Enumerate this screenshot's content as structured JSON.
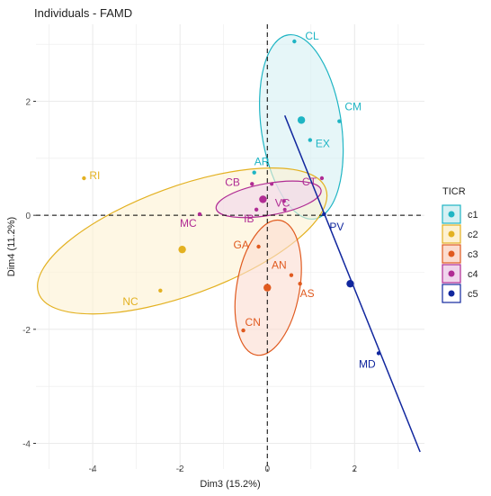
{
  "chart_data": {
    "type": "scatter",
    "title": "Individuals - FAMD",
    "xlabel": "Dim3 (15.2%)",
    "ylabel": "Dim4 (11.2%)",
    "xlim": [
      -5.3,
      3.6
    ],
    "ylim": [
      -4.45,
      3.35
    ],
    "x_ticks": [
      -4,
      -2,
      0,
      2
    ],
    "y_ticks": [
      -4,
      -2,
      0,
      2
    ],
    "grid": true,
    "legend_title": "TICR",
    "legend_position": "right",
    "series": [
      {
        "name": "c1",
        "color": "#1fb5c4",
        "fill": "#d6f0f3",
        "points": [
          {
            "label": "CL",
            "x": 0.62,
            "y": 3.05
          },
          {
            "label": "CM",
            "x": 1.65,
            "y": 1.65
          },
          {
            "label": "EX",
            "x": 0.98,
            "y": 1.32
          },
          {
            "label": "AR",
            "x": -0.3,
            "y": 0.75
          }
        ],
        "centroid": {
          "x": 0.78,
          "y": 1.67
        },
        "ellipse": {
          "cx": 0.78,
          "cy": 1.55,
          "rx": 0.92,
          "ry": 1.63,
          "angle": -8
        }
      },
      {
        "name": "c2",
        "color": "#e3b121",
        "fill": "#fdf1d2",
        "points": [
          {
            "label": "RI",
            "x": -4.2,
            "y": 0.65
          },
          {
            "label": "NC",
            "x": -2.45,
            "y": -1.32
          }
        ],
        "centroid": {
          "x": -1.95,
          "y": -0.6
        },
        "ellipse": {
          "cx": -1.95,
          "cy": -0.45,
          "rx": 3.5,
          "ry": 0.95,
          "angle": -20
        }
      },
      {
        "name": "c3",
        "color": "#e05a1f",
        "fill": "#fbdcd0",
        "points": [
          {
            "label": "GA",
            "x": -0.2,
            "y": -0.55
          },
          {
            "label": "AN",
            "x": 0.55,
            "y": -1.05
          },
          {
            "label": "AS",
            "x": 0.75,
            "y": -1.2
          },
          {
            "label": "CN",
            "x": -0.55,
            "y": -2.02
          }
        ],
        "centroid": {
          "x": 0.0,
          "y": -1.27
        },
        "ellipse": {
          "cx": 0.02,
          "cy": -1.27,
          "rx": 0.72,
          "ry": 1.2,
          "angle": 10
        }
      },
      {
        "name": "c4",
        "color": "#b02c94",
        "fill": "#f0d5ec",
        "points": [
          {
            "label": "CB",
            "x": -0.35,
            "y": 0.55
          },
          {
            "label": "VC",
            "x": 0.38,
            "y": 0.25
          },
          {
            "label": "IB",
            "x": -0.25,
            "y": 0.1
          },
          {
            "label": "MC",
            "x": -1.55,
            "y": 0.02
          },
          {
            "label": "CT",
            "x": 1.25,
            "y": 0.65
          }
        ],
        "centroid": {
          "x": -0.1,
          "y": 0.28
        },
        "ellipse": {
          "cx": 0.03,
          "cy": 0.28,
          "rx": 1.22,
          "ry": 0.28,
          "angle": -10
        }
      },
      {
        "name": "c5",
        "color": "#11279e",
        "fill": "none",
        "points": [
          {
            "label": "PV",
            "x": 1.3,
            "y": 0.02
          },
          {
            "label": "MD",
            "x": 2.55,
            "y": -2.42
          }
        ],
        "centroid": {
          "x": 1.9,
          "y": -1.2
        },
        "line": {
          "x1": 0.4,
          "y1": 1.75,
          "x2": 3.5,
          "y2": -4.15
        }
      }
    ],
    "extra_points": [
      {
        "x": 0.1,
        "y": 0.55,
        "series": "c4"
      },
      {
        "x": 0.4,
        "y": 0.1,
        "series": "c4"
      }
    ]
  }
}
